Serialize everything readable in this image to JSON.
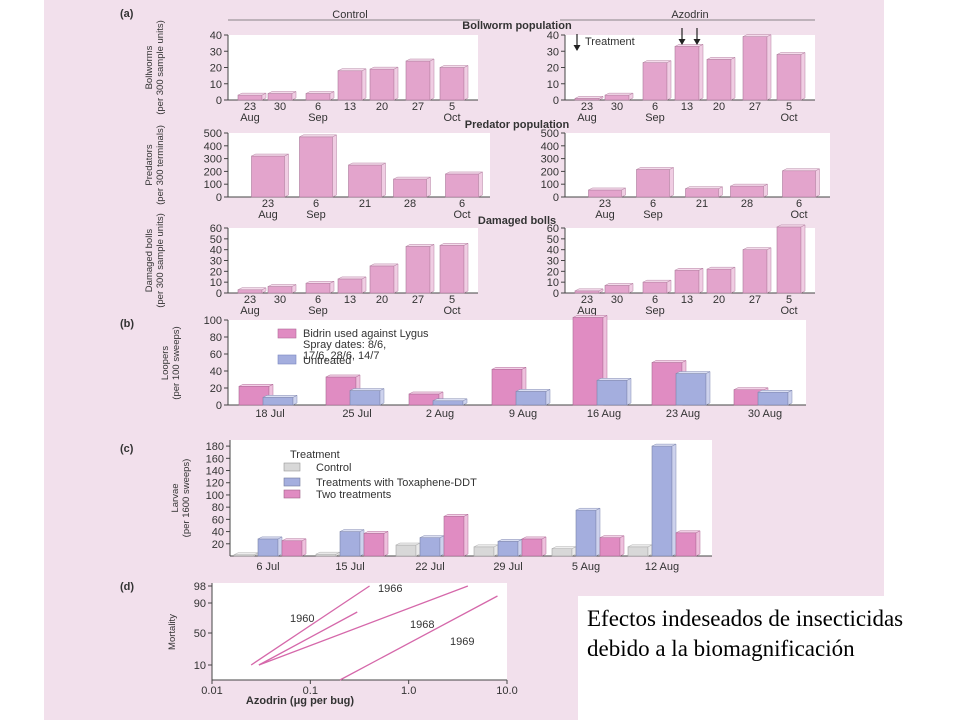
{
  "chart_data": [
    {
      "panel": "a",
      "type": "bar",
      "group_title": "Bollworm population",
      "column_header": "Control",
      "ylabel": "Bollworms (per 300 sample units)",
      "yticks": [
        0,
        10,
        20,
        30,
        40
      ],
      "ylim": [
        0,
        40
      ],
      "categories": [
        "23",
        "30",
        "6",
        "13",
        "20",
        "27",
        "5"
      ],
      "months": [
        "Aug",
        "Sep",
        "Oct"
      ],
      "values": [
        3,
        4,
        4,
        18,
        19,
        24,
        20
      ],
      "color": "#e3a4cc"
    },
    {
      "panel": "a",
      "type": "bar",
      "group_title": "Bollworm population",
      "column_header": "Azodrin",
      "ylabel": "",
      "yticks": [
        0,
        10,
        20,
        30,
        40
      ],
      "ylim": [
        0,
        40
      ],
      "categories": [
        "23",
        "30",
        "6",
        "13",
        "20",
        "27",
        "5"
      ],
      "months": [
        "Aug",
        "Sep",
        "Oct"
      ],
      "values": [
        1,
        3,
        23,
        33,
        25,
        39,
        28
      ],
      "annotation": "Treatment",
      "treatment_arrows_at": [
        "23",
        "13",
        "13"
      ],
      "color": "#e3a4cc"
    },
    {
      "panel": "a",
      "type": "bar",
      "group_title": "Predator population",
      "ylabel": "Predators (per 300 terminals)",
      "yticks": [
        0,
        100,
        200,
        300,
        400,
        500
      ],
      "ylim": [
        0,
        500
      ],
      "categories": [
        "23",
        "6",
        "21",
        "28",
        "6"
      ],
      "months": [
        "Aug",
        "Sep",
        "Oct"
      ],
      "values": [
        320,
        470,
        250,
        140,
        180
      ],
      "color": "#e3a4cc"
    },
    {
      "panel": "a",
      "type": "bar",
      "group_title": "Predator population",
      "ylabel": "",
      "yticks": [
        0,
        100,
        200,
        300,
        400,
        500
      ],
      "ylim": [
        0,
        500
      ],
      "categories": [
        "23",
        "6",
        "21",
        "28",
        "6"
      ],
      "months": [
        "Aug",
        "Sep",
        "Oct"
      ],
      "values": [
        55,
        215,
        65,
        85,
        205
      ],
      "color": "#e3a4cc"
    },
    {
      "panel": "a",
      "type": "bar",
      "group_title": "Damaged bolls",
      "ylabel": "Damaged bolls (per 300 sample units)",
      "yticks": [
        0,
        10,
        20,
        30,
        40,
        50,
        60
      ],
      "ylim": [
        0,
        60
      ],
      "categories": [
        "23",
        "30",
        "6",
        "13",
        "20",
        "27",
        "5"
      ],
      "months": [
        "Aug",
        "Sep",
        "Oct"
      ],
      "values": [
        3,
        6,
        9,
        13,
        25,
        43,
        44
      ],
      "color": "#e3a4cc"
    },
    {
      "panel": "a",
      "type": "bar",
      "group_title": "Damaged bolls",
      "ylabel": "",
      "yticks": [
        0,
        10,
        20,
        30,
        40,
        50,
        60
      ],
      "ylim": [
        0,
        60
      ],
      "categories": [
        "23",
        "30",
        "6",
        "13",
        "20",
        "27",
        "5"
      ],
      "months": [
        "Aug",
        "Sep",
        "Oct"
      ],
      "values": [
        2,
        7,
        10,
        21,
        22,
        40,
        61
      ],
      "color": "#e3a4cc"
    },
    {
      "panel": "b",
      "type": "bar",
      "ylabel": "Loopers (per 100 sweeps)",
      "yticks": [
        0,
        20,
        40,
        60,
        80,
        100
      ],
      "ylim": [
        0,
        100
      ],
      "categories": [
        "18 Jul",
        "25 Jul",
        "2 Aug",
        "9 Aug",
        "16 Aug",
        "23 Aug",
        "30 Aug"
      ],
      "legend": [
        "Bidrin used against Lygus",
        "Spray dates: 8/6,",
        "17/6, 28/6, 14/7",
        "Untreated"
      ],
      "series": [
        {
          "name": "Bidrin used against Lygus",
          "values": [
            22,
            33,
            13,
            42,
            103,
            50,
            18
          ],
          "color": "#e08cc2"
        },
        {
          "name": "Untreated",
          "values": [
            9,
            17,
            5,
            16,
            29,
            37,
            15
          ],
          "color": "#a4aede"
        }
      ]
    },
    {
      "panel": "c",
      "type": "bar",
      "ylabel": "Larvae (per 1600 sweeps)",
      "yticks": [
        20,
        40,
        60,
        80,
        100,
        120,
        140,
        160,
        180
      ],
      "ylim": [
        0,
        190
      ],
      "categories": [
        "6 Jul",
        "15 Jul",
        "22 Jul",
        "29 Jul",
        "5 Aug",
        "12 Aug"
      ],
      "legend_title": "Treatment",
      "legend": [
        "Control",
        "Treatments with Toxaphene-DDT",
        "Two treatments"
      ],
      "series": [
        {
          "name": "Control",
          "values": [
            2,
            3,
            18,
            15,
            12,
            15
          ],
          "color": "#d8d8d8"
        },
        {
          "name": "Treatments with Toxaphene-DDT",
          "values": [
            28,
            40,
            30,
            24,
            75,
            180
          ],
          "color": "#a4aede"
        },
        {
          "name": "Two treatments",
          "values": [
            25,
            37,
            65,
            28,
            30,
            38
          ],
          "color": "#e08cc2"
        }
      ]
    },
    {
      "panel": "d",
      "type": "line",
      "xlabel": "Azodrin (μg per bug)",
      "ylabel": "Mortality",
      "xscale": "log",
      "xlim": [
        0.01,
        10
      ],
      "xticks": [
        0.01,
        0.1,
        1.0,
        10.0
      ],
      "xticklabels": [
        "0.01",
        "0.1",
        "1.0",
        "10.0"
      ],
      "yticks": [
        10,
        50,
        90,
        98
      ],
      "series": [
        {
          "name": "1966",
          "x": [
            0.025,
            0.4
          ],
          "y": [
            10,
            98
          ]
        },
        {
          "name": "1960",
          "x": [
            0.03,
            0.3
          ],
          "y": [
            10,
            80
          ]
        },
        {
          "name": "1968",
          "x": [
            0.03,
            4
          ],
          "y": [
            10,
            98
          ]
        },
        {
          "name": "1969",
          "x": [
            0.2,
            8
          ],
          "y": [
            0,
            95
          ]
        }
      ]
    }
  ],
  "labels": {
    "a": "(a)",
    "b": "(b)",
    "c": "(c)",
    "d": "(d)"
  },
  "caption": "Efectos indeseados de insecticidas debido a la biomagnificación"
}
